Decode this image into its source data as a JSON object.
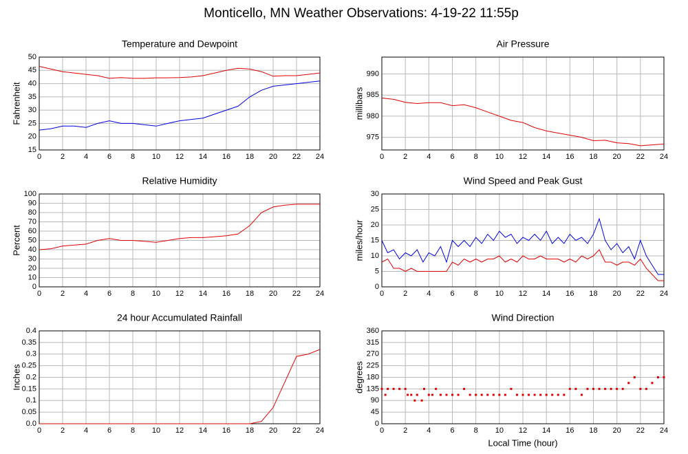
{
  "title": "Monticello, MN Weather Observations: 4-19-22 11:55p",
  "chart_data": [
    {
      "type": "line",
      "title": "Temperature and Dewpoint",
      "ylabel": "Fahrenheit",
      "x": [
        0,
        1,
        2,
        3,
        4,
        5,
        6,
        7,
        8,
        9,
        10,
        11,
        12,
        13,
        14,
        15,
        16,
        17,
        18,
        19,
        20,
        21,
        22,
        23,
        24
      ],
      "series": [
        {
          "name": "Temperature",
          "color": "#e00000",
          "values": [
            46.5,
            45.5,
            44.5,
            44,
            43.5,
            43,
            42,
            42.3,
            42,
            42,
            42.2,
            42.2,
            42.3,
            42.5,
            43,
            44,
            45,
            45.8,
            45.5,
            44.5,
            42.8,
            43,
            43,
            43.5,
            44
          ]
        },
        {
          "name": "Dewpoint",
          "color": "#0000e0",
          "values": [
            22.5,
            23,
            24,
            24,
            23.5,
            25,
            26,
            25,
            25,
            24.5,
            24,
            25,
            26,
            26.5,
            27,
            28.5,
            30,
            31.5,
            35,
            37.5,
            39,
            39.5,
            40,
            40.5,
            41
          ]
        }
      ],
      "xlim": [
        0,
        24
      ],
      "xticks": [
        0,
        2,
        4,
        6,
        8,
        10,
        12,
        14,
        16,
        18,
        20,
        22,
        24
      ],
      "ylim": [
        15,
        50
      ],
      "yticks": [
        15,
        20,
        25,
        30,
        35,
        40,
        45,
        50
      ],
      "grid": true
    },
    {
      "type": "line",
      "title": "Air Pressure",
      "ylabel": "millibars",
      "x": [
        0,
        1,
        2,
        3,
        4,
        5,
        6,
        7,
        8,
        9,
        10,
        11,
        12,
        13,
        14,
        15,
        16,
        17,
        18,
        19,
        20,
        21,
        22,
        23,
        24
      ],
      "series": [
        {
          "name": "Pressure",
          "color": "#e00000",
          "values": [
            984.3,
            984,
            983.3,
            983,
            983.2,
            983.2,
            982.5,
            982.7,
            982,
            981,
            980,
            979,
            978.5,
            977.3,
            976.5,
            976,
            975.5,
            975,
            974.2,
            974.3,
            973.7,
            973.5,
            973,
            973.2,
            973.4
          ]
        }
      ],
      "xlim": [
        0,
        24
      ],
      "xticks": [
        0,
        2,
        4,
        6,
        8,
        10,
        12,
        14,
        16,
        18,
        20,
        22,
        24
      ],
      "ylim": [
        972,
        994
      ],
      "yticks": [
        975,
        980,
        985,
        990
      ],
      "grid": true
    },
    {
      "type": "line",
      "title": "Relative Humidity",
      "ylabel": "Percent",
      "x": [
        0,
        1,
        2,
        3,
        4,
        5,
        6,
        7,
        8,
        9,
        10,
        11,
        12,
        13,
        14,
        15,
        16,
        17,
        18,
        19,
        20,
        21,
        22,
        23,
        24
      ],
      "series": [
        {
          "name": "Humidity",
          "color": "#e00000",
          "values": [
            40,
            41,
            44,
            45,
            46,
            50,
            52,
            50,
            50,
            49,
            48,
            50,
            52,
            53,
            53,
            54,
            55,
            57,
            66,
            80,
            86,
            88,
            89,
            89,
            89
          ]
        }
      ],
      "xlim": [
        0,
        24
      ],
      "xticks": [
        0,
        2,
        4,
        6,
        8,
        10,
        12,
        14,
        16,
        18,
        20,
        22,
        24
      ],
      "ylim": [
        0,
        100
      ],
      "yticks": [
        0,
        10,
        20,
        30,
        40,
        50,
        60,
        70,
        80,
        90,
        100
      ],
      "grid": true
    },
    {
      "type": "line",
      "title": "Wind Speed and Peak Gust",
      "ylabel": "miles/hour",
      "x": [
        0,
        0.5,
        1,
        1.5,
        2,
        2.5,
        3,
        3.5,
        4,
        4.5,
        5,
        5.5,
        6,
        6.5,
        7,
        7.5,
        8,
        8.5,
        9,
        9.5,
        10,
        10.5,
        11,
        11.5,
        12,
        12.5,
        13,
        13.5,
        14,
        14.5,
        15,
        15.5,
        16,
        16.5,
        17,
        17.5,
        18,
        18.5,
        19,
        19.5,
        20,
        20.5,
        21,
        21.5,
        22,
        22.5,
        23,
        23.5,
        24
      ],
      "series": [
        {
          "name": "Peak Gust",
          "color": "#0000e0",
          "values": [
            15,
            11,
            12,
            9,
            11,
            10,
            12,
            8,
            11,
            10,
            13,
            8,
            15,
            13,
            15,
            13,
            16,
            14,
            17,
            15,
            18,
            16,
            17,
            14,
            16,
            15,
            17,
            15,
            18,
            14,
            16,
            14,
            17,
            15,
            16,
            14,
            17,
            22,
            15,
            12,
            14,
            11,
            13,
            9,
            15,
            10,
            7,
            4,
            4
          ]
        },
        {
          "name": "Wind Speed",
          "color": "#e00000",
          "values": [
            8,
            9,
            6,
            6,
            5,
            6,
            5,
            5,
            5,
            5,
            5,
            5,
            8,
            7,
            9,
            8,
            9,
            8,
            9,
            9,
            10,
            8,
            9,
            8,
            10,
            9,
            9,
            10,
            9,
            9,
            9,
            8,
            9,
            8,
            10,
            9,
            10,
            12,
            8,
            8,
            7,
            8,
            8,
            7,
            9,
            6,
            4,
            2,
            2
          ]
        }
      ],
      "xlim": [
        0,
        24
      ],
      "xticks": [
        0,
        2,
        4,
        6,
        8,
        10,
        12,
        14,
        16,
        18,
        20,
        22,
        24
      ],
      "ylim": [
        0,
        30
      ],
      "yticks": [
        0,
        5,
        10,
        15,
        20,
        25,
        30
      ],
      "grid": true
    },
    {
      "type": "line",
      "title": "24 hour Accumulated Rainfall",
      "ylabel": "Inches",
      "x": [
        0,
        1,
        2,
        3,
        4,
        5,
        6,
        7,
        8,
        9,
        10,
        11,
        12,
        13,
        14,
        15,
        16,
        17,
        18,
        19,
        20,
        21,
        22,
        23,
        24
      ],
      "series": [
        {
          "name": "Rainfall",
          "color": "#e00000",
          "values": [
            0,
            0,
            0,
            0,
            0,
            0,
            0,
            0,
            0,
            0,
            0,
            0,
            0,
            0,
            0,
            0,
            0,
            0,
            0,
            0.01,
            0.07,
            0.18,
            0.29,
            0.3,
            0.32
          ]
        }
      ],
      "xlim": [
        0,
        24
      ],
      "xticks": [
        0,
        2,
        4,
        6,
        8,
        10,
        12,
        14,
        16,
        18,
        20,
        22,
        24
      ],
      "ylim": [
        0,
        0.4
      ],
      "yticks": [
        {
          "value": 0,
          "label": "0.0"
        },
        0.05,
        0.1,
        0.15,
        0.2,
        0.25,
        0.3,
        0.35,
        0.4
      ],
      "grid": true
    },
    {
      "type": "scatter",
      "title": "Wind Direction",
      "ylabel": "degrees",
      "xlabel": "Local Time (hour)",
      "x": [
        0,
        0.3,
        0.5,
        1,
        1.5,
        2,
        2.2,
        2.5,
        2.8,
        3,
        3.4,
        3.6,
        4,
        4.3,
        4.6,
        5,
        5.5,
        6,
        6.5,
        7,
        7.5,
        8,
        8.5,
        9,
        9.5,
        10,
        10.5,
        11,
        11.5,
        12,
        12.5,
        13,
        13.5,
        14,
        14.5,
        15,
        15.5,
        16,
        16.5,
        17,
        17.5,
        18,
        18.5,
        19,
        19.5,
        20,
        20.5,
        21,
        21.5,
        22,
        22.5,
        23,
        23.5,
        24
      ],
      "series": [
        {
          "name": "Direction",
          "color": "#e00000",
          "values": [
            135,
            112,
            135,
            135,
            135,
            135,
            112,
            112,
            90,
            112,
            90,
            135,
            112,
            112,
            135,
            112,
            112,
            112,
            112,
            135,
            112,
            112,
            112,
            112,
            112,
            112,
            112,
            135,
            112,
            112,
            112,
            112,
            112,
            112,
            112,
            112,
            112,
            135,
            135,
            112,
            135,
            135,
            135,
            135,
            135,
            135,
            135,
            158,
            180,
            135,
            135,
            158,
            180,
            180
          ]
        }
      ],
      "xlim": [
        0,
        24
      ],
      "xticks": [
        0,
        2,
        4,
        6,
        8,
        10,
        12,
        14,
        16,
        18,
        20,
        22,
        24
      ],
      "ylim": [
        0,
        360
      ],
      "yticks": [
        0,
        45,
        90,
        135,
        180,
        225,
        270,
        315,
        360
      ],
      "grid": true
    }
  ]
}
